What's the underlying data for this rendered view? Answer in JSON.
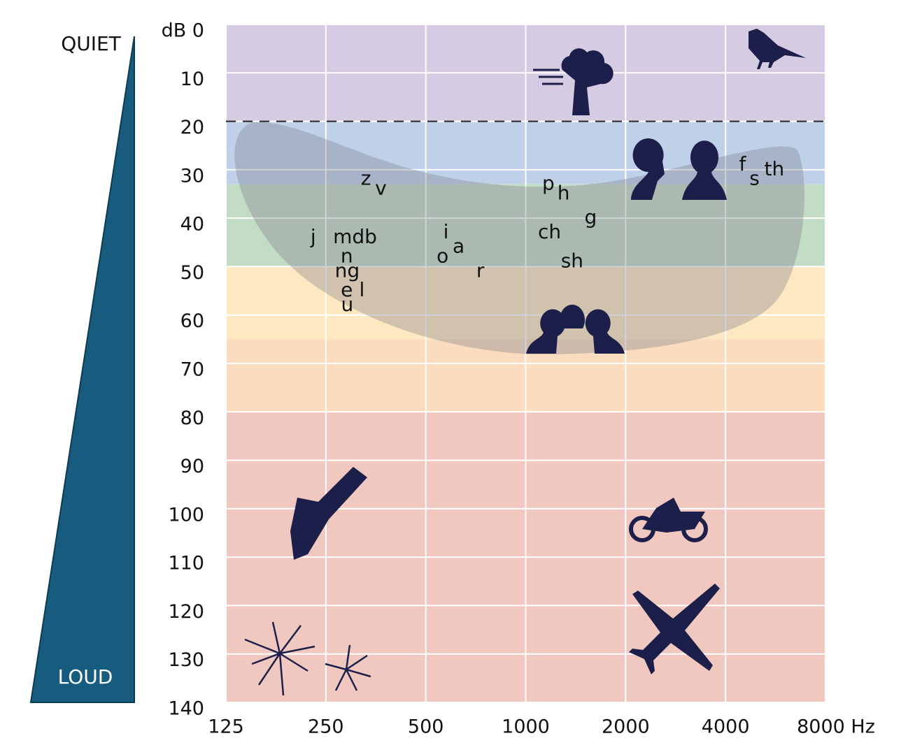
{
  "chart_data": {
    "type": "audiogram",
    "side_labels": {
      "top": "QUIET",
      "bottom": "LOUD"
    },
    "xscale": "log",
    "y_inverted": true,
    "xlim": [
      125,
      8000
    ],
    "ylim": [
      0,
      140
    ],
    "xticks": [
      125,
      250,
      500,
      1000,
      2000,
      4000,
      {
        "value": 8000,
        "label": "8000 Hz"
      }
    ],
    "yticks": [
      {
        "value": 0,
        "label": "dB 0"
      },
      10,
      20,
      30,
      40,
      50,
      60,
      70,
      80,
      90,
      100,
      110,
      120,
      130,
      140
    ],
    "grid": true,
    "grid_color": "#ffffff",
    "bands": [
      {
        "from": 0,
        "to": 20,
        "color": "#d5cbe3"
      },
      {
        "from": 20,
        "to": 33,
        "color": "#bfd1e8"
      },
      {
        "from": 33,
        "to": 50,
        "color": "#c3dcc6"
      },
      {
        "from": 50,
        "to": 65,
        "color": "#fde8c1"
      },
      {
        "from": 65,
        "to": 80,
        "color": "#fbdcbe"
      },
      {
        "from": 80,
        "to": 140,
        "color": "#f0c8c0"
      }
    ],
    "threshold": 20,
    "phonemes": {
      "color": "#111111",
      "labels": [
        "z",
        "v",
        "p",
        "h",
        "g",
        "ch",
        "sh",
        "f",
        "s",
        "th",
        "j",
        "mdb",
        "n",
        "ng",
        "e",
        "l",
        "u",
        "i",
        "a",
        "o",
        "r"
      ],
      "x": [
        330,
        366,
        1170,
        1300,
        1570,
        1180,
        1380,
        4500,
        4890,
        5610,
        229,
        306,
        289,
        290,
        289,
        321,
        290,
        575,
        628,
        562,
        730
      ],
      "y": [
        32,
        34,
        33,
        35,
        40,
        43,
        49,
        29,
        32,
        30,
        44,
        44,
        48,
        51,
        55,
        55,
        58,
        43,
        46,
        48,
        51
      ]
    }
  }
}
